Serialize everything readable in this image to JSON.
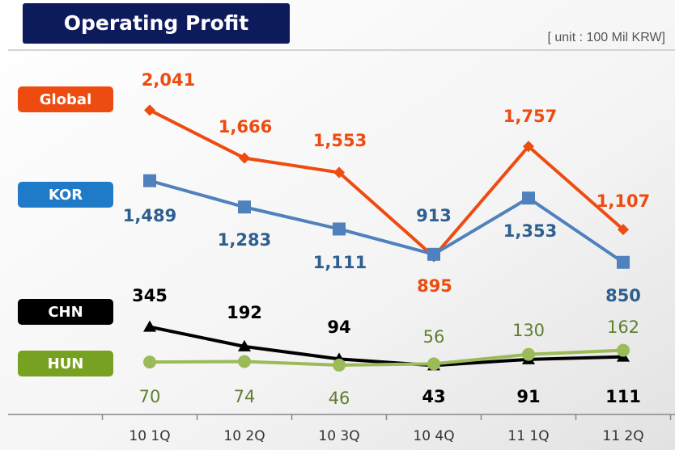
{
  "chart_data": {
    "type": "line",
    "title": "Operating Profit",
    "subtitle": "[ unit : 100 Mil KRW]",
    "categories": [
      "10 1Q",
      "10 2Q",
      "10 3Q",
      "10 4Q",
      "11 1Q",
      "11 2Q"
    ],
    "ylim": [
      -340,
      2650
    ],
    "series": [
      {
        "name": "Global",
        "color": "#ee4b10",
        "marker": "diamond",
        "values": [
          2041,
          1666,
          1553,
          895,
          1757,
          1107
        ],
        "value_labels": [
          "2,041",
          "1,666",
          "1,553",
          "895",
          "1,757",
          "1,107"
        ]
      },
      {
        "name": "KOR",
        "color": "#4f81bd",
        "marker": "square",
        "values": [
          1489,
          1283,
          1111,
          913,
          1353,
          850
        ],
        "value_labels": [
          "1,489",
          "1,283",
          "1,111",
          "913",
          "1,353",
          "850"
        ]
      },
      {
        "name": "CHN",
        "color": "#000000",
        "marker": "triangle",
        "values": [
          345,
          192,
          94,
          43,
          91,
          111
        ]
      },
      {
        "name": "HUN",
        "color": "#9bbb59",
        "marker": "circle",
        "values": [
          70,
          74,
          46,
          56,
          130,
          162
        ]
      }
    ]
  }
}
